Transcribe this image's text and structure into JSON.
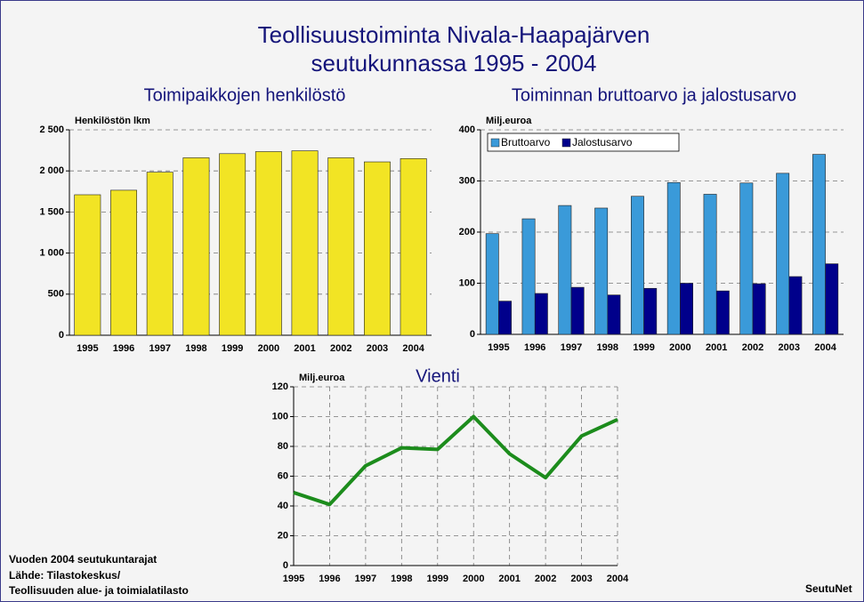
{
  "title": [
    "Teollisuustoiminta Nivala-Haapajärven",
    "seutukunnassa 1995 - 2004"
  ],
  "notes": [
    "Vuoden 2004 seutukuntarajat",
    "Lähde: Tilastokeskus/",
    "Teollisuuden alue- ja toimialatilasto"
  ],
  "brand": "SeutuNet",
  "chart_data": [
    {
      "type": "bar",
      "title": "Toimipaikkojen henkilöstö",
      "y_label": "Henkilöstön lkm",
      "categories": [
        "1995",
        "1996",
        "1997",
        "1998",
        "1999",
        "2000",
        "2001",
        "2002",
        "2003",
        "2004"
      ],
      "values": [
        1710,
        1765,
        1985,
        2160,
        2210,
        2235,
        2245,
        2160,
        2110,
        2150
      ],
      "color": "#f2e424",
      "ylim": [
        0,
        2500
      ],
      "yticks": [
        0,
        500,
        {
          "value": 1000,
          "label": "1 000"
        },
        {
          "value": 1500,
          "label": "1 500"
        },
        {
          "value": 2000,
          "label": "2 000"
        },
        {
          "value": 2500,
          "label": "2 500"
        }
      ],
      "grid": "y"
    },
    {
      "type": "bar",
      "title": "Toiminnan bruttoarvo ja jalostusarvo",
      "y_label": "Milj.euroa",
      "categories": [
        "1995",
        "1996",
        "1997",
        "1998",
        "1999",
        "2000",
        "2001",
        "2002",
        "2003",
        "2004"
      ],
      "series": [
        {
          "name": "Bruttoarvo",
          "color": "#3a9ad9",
          "values": [
            197,
            226,
            252,
            247,
            270,
            297,
            274,
            296,
            315,
            352
          ]
        },
        {
          "name": "Jalostusarvo",
          "color": "#00008b",
          "values": [
            65,
            80,
            92,
            77,
            90,
            100,
            85,
            99,
            113,
            138
          ]
        }
      ],
      "ylim": [
        0,
        400
      ],
      "yticks": [
        0,
        100,
        200,
        300,
        400
      ],
      "grid": "y",
      "legend": "upper left"
    },
    {
      "type": "line",
      "title": "Vienti",
      "y_label": "Milj.euroa",
      "categories": [
        "1995",
        "1996",
        "1997",
        "1998",
        "1999",
        "2000",
        "2001",
        "2002",
        "2003",
        "2004"
      ],
      "values": [
        49,
        41,
        67,
        79,
        78,
        100,
        75,
        59,
        87,
        98
      ],
      "color": "#1c8c1c",
      "ylim": [
        0,
        120
      ],
      "yticks": [
        0,
        20,
        40,
        60,
        80,
        100,
        120
      ],
      "grid": "both"
    }
  ]
}
